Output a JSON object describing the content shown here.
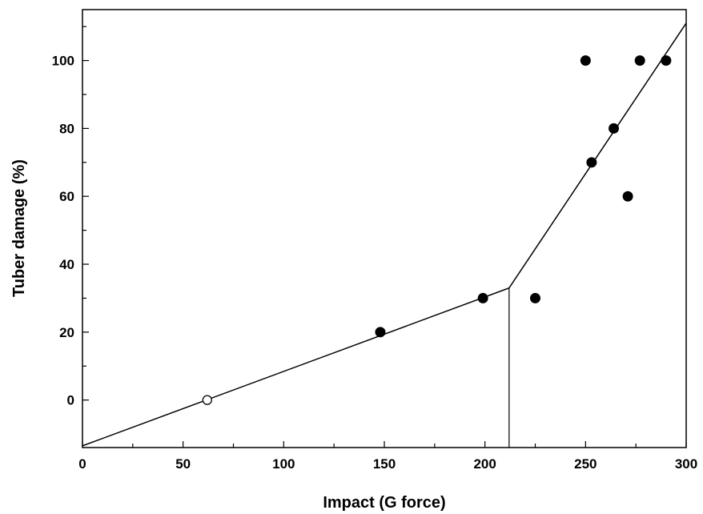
{
  "chart_data": {
    "type": "scatter",
    "title": "",
    "xlabel": "Impact (G force)",
    "ylabel": "Tuber damage (%)",
    "xlim": [
      0,
      300
    ],
    "ylim": [
      -14,
      115
    ],
    "x_ticks": [
      0,
      50,
      100,
      150,
      200,
      250,
      300
    ],
    "x_minor_ticks": [
      25,
      75,
      125,
      175,
      225,
      275
    ],
    "y_ticks": [
      0,
      20,
      40,
      60,
      80,
      100
    ],
    "y_minor_ticks": [
      10,
      30,
      50,
      70,
      90,
      110
    ],
    "grid": false,
    "legend": "none",
    "series": [
      {
        "marker": "filled-circle",
        "points": [
          {
            "x": 148,
            "y": 20
          },
          {
            "x": 199,
            "y": 30
          },
          {
            "x": 225,
            "y": 30
          },
          {
            "x": 250,
            "y": 100
          },
          {
            "x": 253,
            "y": 70
          },
          {
            "x": 264,
            "y": 80
          },
          {
            "x": 271,
            "y": 60
          },
          {
            "x": 277,
            "y": 100
          },
          {
            "x": 290,
            "y": 100
          }
        ]
      },
      {
        "marker": "open-circle",
        "points": [
          {
            "x": 62,
            "y": 0
          }
        ]
      }
    ],
    "fit_lines": [
      {
        "from": {
          "x": 0,
          "y": -13.5
        },
        "to": {
          "x": 212,
          "y": 33
        }
      },
      {
        "from": {
          "x": 212,
          "y": 33
        },
        "to": {
          "x": 300,
          "y": 111
        }
      }
    ],
    "breakpoint": {
      "x": 212,
      "y": 33
    }
  }
}
